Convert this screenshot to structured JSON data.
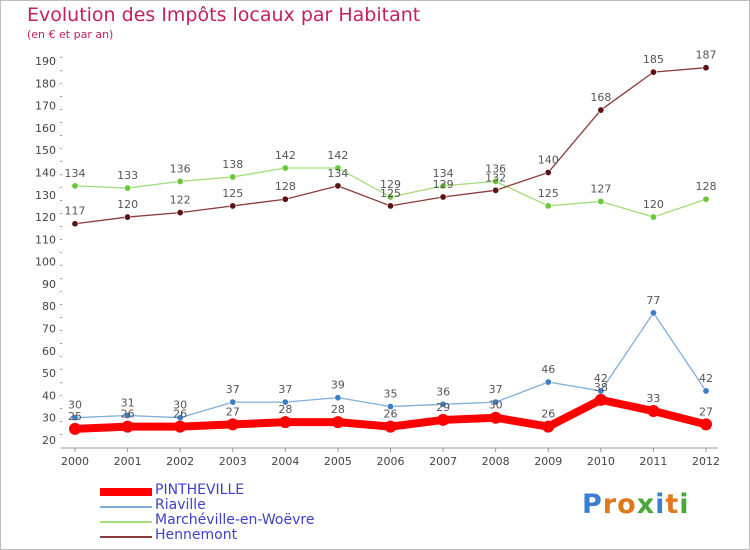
{
  "header": {
    "title": "Evolution des Impôts locaux par Habitant",
    "subtitle": "(en € et par an)"
  },
  "logo": {
    "text": "Proxiti",
    "letter_colors": [
      "#3a7fd0",
      "#e0781e",
      "#e0781e",
      "#4aa83a",
      "#3a7fd0",
      "#e0781e",
      "#4aa83a"
    ]
  },
  "chart_data": {
    "type": "line",
    "title": "Evolution des Impôts locaux par Habitant",
    "subtitle": "(en € et par an)",
    "xlabel": "",
    "ylabel": "",
    "ylim": [
      20,
      190
    ],
    "ytick_step": 10,
    "grid": false,
    "legend_position": "bottom-left",
    "categories": [
      "2000",
      "2001",
      "2002",
      "2003",
      "2004",
      "2005",
      "2006",
      "2007",
      "2008",
      "2009",
      "2010",
      "2011",
      "2012"
    ],
    "series": [
      {
        "name": "PINTHEVILLE",
        "color": "#ff0000",
        "marker_color": "#ff0000",
        "width": "thick",
        "values": [
          25,
          26,
          26,
          27,
          28,
          28,
          26,
          29,
          30,
          26,
          38,
          33,
          27
        ],
        "labels": [
          "25",
          "26",
          "26",
          "27",
          "28",
          "28",
          "26",
          "29",
          "30",
          "26",
          "38",
          "33",
          "27"
        ]
      },
      {
        "name": "Riaville",
        "color": "#7faed9",
        "marker_color": "#3a7fc8",
        "width": "thin",
        "values": [
          30,
          31,
          30,
          37,
          37,
          39,
          35,
          36,
          37,
          46,
          42,
          77,
          42
        ],
        "labels": [
          "30",
          "31",
          "30",
          "37",
          "37",
          "39",
          "35",
          "36",
          "37",
          "46",
          "42",
          "77",
          "42"
        ]
      },
      {
        "name": "Marchéville-en-Woëvre",
        "color": "#a3dc78",
        "marker_color": "#6cc83a",
        "width": "thin",
        "values": [
          134,
          133,
          136,
          138,
          142,
          142,
          129,
          134,
          136,
          125,
          127,
          120,
          128
        ],
        "labels": [
          "134",
          "133",
          "136",
          "138",
          "142",
          "142",
          "129",
          "134",
          "136",
          "125",
          "127",
          "120",
          "128"
        ]
      },
      {
        "name": "Hennemont",
        "color": "#8a3a3a",
        "marker_color": "#5a1414",
        "width": "thin",
        "values": [
          117,
          120,
          122,
          125,
          128,
          134,
          125,
          129,
          132,
          140,
          168,
          185,
          187
        ],
        "labels": [
          "117",
          "120",
          "122",
          "125",
          "128",
          "134",
          "125",
          "129",
          "132",
          "140",
          "168",
          "185",
          "187"
        ]
      }
    ]
  }
}
